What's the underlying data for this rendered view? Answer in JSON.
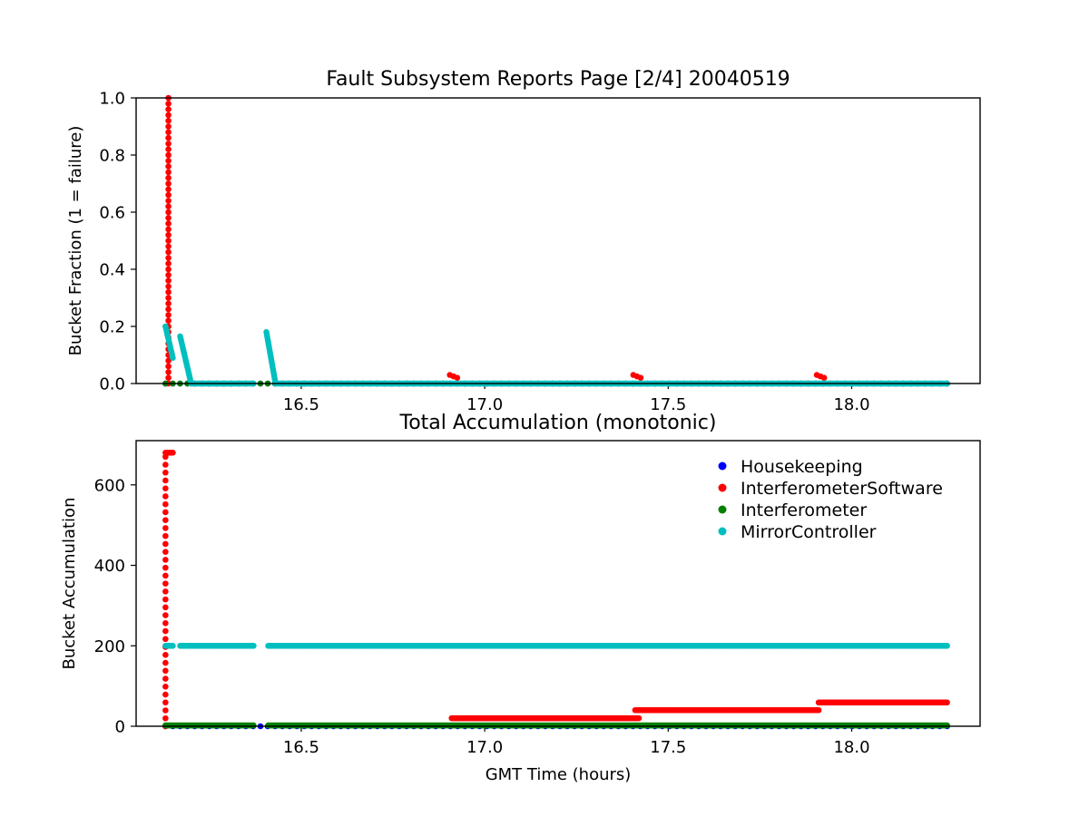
{
  "colors": {
    "Housekeeping": "#0000ff",
    "InterferometerSoftware": "#ff0000",
    "Interferometer": "#008000",
    "MirrorController": "#00bfbf"
  },
  "chart_data": [
    {
      "type": "scatter",
      "title": "Fault Subsystem Reports Page [2/4] 20040519",
      "xlabel": "",
      "ylabel": "Bucket Fraction (1 = failure)",
      "xlim": [
        16.05,
        18.35
      ],
      "ylim": [
        0.0,
        1.0
      ],
      "xticks": [
        16.5,
        17.0,
        17.5,
        18.0
      ],
      "xtick_labels": [
        "16.5",
        "17.0",
        "17.5",
        "18.0"
      ],
      "yticks": [
        0.0,
        0.2,
        0.4,
        0.6,
        0.8,
        1.0
      ],
      "ytick_labels": [
        "0.0",
        "0.2",
        "0.4",
        "0.6",
        "0.8",
        "1.0"
      ],
      "grid": false,
      "series": [
        {
          "name": "Housekeeping",
          "segments": [
            {
              "x_start": 16.13,
              "x_end": 18.26,
              "y_start": 0.0,
              "y_end": 0.0,
              "step": 0.02
            }
          ]
        },
        {
          "name": "InterferometerSoftware",
          "segments": [
            {
              "x_start": 16.138,
              "x_end": 16.138,
              "y_start": 0.0,
              "y_end": 1.0,
              "step": 0.02
            },
            {
              "x_start": 16.905,
              "x_end": 16.925,
              "y_start": 0.03,
              "y_end": 0.02,
              "step": 0.01
            },
            {
              "x_start": 17.405,
              "x_end": 17.425,
              "y_start": 0.03,
              "y_end": 0.02,
              "step": 0.01
            },
            {
              "x_start": 17.905,
              "x_end": 17.925,
              "y_start": 0.03,
              "y_end": 0.02,
              "step": 0.01
            }
          ]
        },
        {
          "name": "Interferometer",
          "segments": [
            {
              "x_start": 16.13,
              "x_end": 18.26,
              "y_start": 0.0,
              "y_end": 0.0,
              "step": 0.02
            }
          ]
        },
        {
          "name": "MirrorController",
          "segments": [
            {
              "x_start": 16.13,
              "x_end": 16.15,
              "y_start": 0.2,
              "y_end": 0.09,
              "step": 0.0015
            },
            {
              "x_start": 16.17,
              "x_end": 16.2,
              "y_start": 0.165,
              "y_end": 0.0,
              "step": 0.0015
            },
            {
              "x_start": 16.2,
              "x_end": 16.37,
              "y_start": 0.0,
              "y_end": 0.0,
              "step": 0.0035
            },
            {
              "x_start": 16.405,
              "x_end": 16.43,
              "y_start": 0.18,
              "y_end": 0.0,
              "step": 0.0012
            },
            {
              "x_start": 16.43,
              "x_end": 18.26,
              "y_start": 0.0,
              "y_end": 0.0,
              "step": 0.0035
            }
          ]
        }
      ]
    },
    {
      "type": "scatter",
      "title": "Total Accumulation (monotonic)",
      "xlabel": "GMT Time (hours)",
      "ylabel": "Bucket Accumulation",
      "xlim": [
        16.05,
        18.35
      ],
      "ylim": [
        0,
        710
      ],
      "xticks": [
        16.5,
        17.0,
        17.5,
        18.0
      ],
      "xtick_labels": [
        "16.5",
        "17.0",
        "17.5",
        "18.0"
      ],
      "yticks": [
        0,
        200,
        400,
        600
      ],
      "ytick_labels": [
        "0",
        "200",
        "400",
        "600"
      ],
      "grid": false,
      "legend": "top-right",
      "series": [
        {
          "name": "Housekeeping",
          "segments": [
            {
              "x_start": 16.13,
              "x_end": 18.26,
              "y_start": 0,
              "y_end": 0,
              "step": 0.02
            }
          ]
        },
        {
          "name": "InterferometerSoftware",
          "segments": [
            {
              "x_start": 16.13,
              "x_end": 16.13,
              "y_start": 0,
              "y_end": 670,
              "step": 20
            },
            {
              "x_start": 16.13,
              "x_end": 16.15,
              "y_start": 680,
              "y_end": 680,
              "step": 0.005
            },
            {
              "x_start": 16.91,
              "x_end": 17.42,
              "y_start": 20,
              "y_end": 20,
              "step": 0.0035
            },
            {
              "x_start": 17.41,
              "x_end": 17.91,
              "y_start": 40,
              "y_end": 40,
              "step": 0.0035
            },
            {
              "x_start": 17.91,
              "x_end": 18.26,
              "y_start": 59,
              "y_end": 59,
              "step": 0.0035
            }
          ]
        },
        {
          "name": "Interferometer",
          "segments": [
            {
              "x_start": 16.13,
              "x_end": 16.37,
              "y_start": 2,
              "y_end": 2,
              "step": 0.0035
            },
            {
              "x_start": 16.41,
              "x_end": 18.26,
              "y_start": 2,
              "y_end": 2,
              "step": 0.0035
            }
          ]
        },
        {
          "name": "MirrorController",
          "segments": [
            {
              "x_start": 16.13,
              "x_end": 16.15,
              "y_start": 200,
              "y_end": 200,
              "step": 0.0035
            },
            {
              "x_start": 16.17,
              "x_end": 16.37,
              "y_start": 200,
              "y_end": 200,
              "step": 0.0035
            },
            {
              "x_start": 16.41,
              "x_end": 18.26,
              "y_start": 200,
              "y_end": 200,
              "step": 0.0035
            }
          ]
        }
      ]
    }
  ]
}
